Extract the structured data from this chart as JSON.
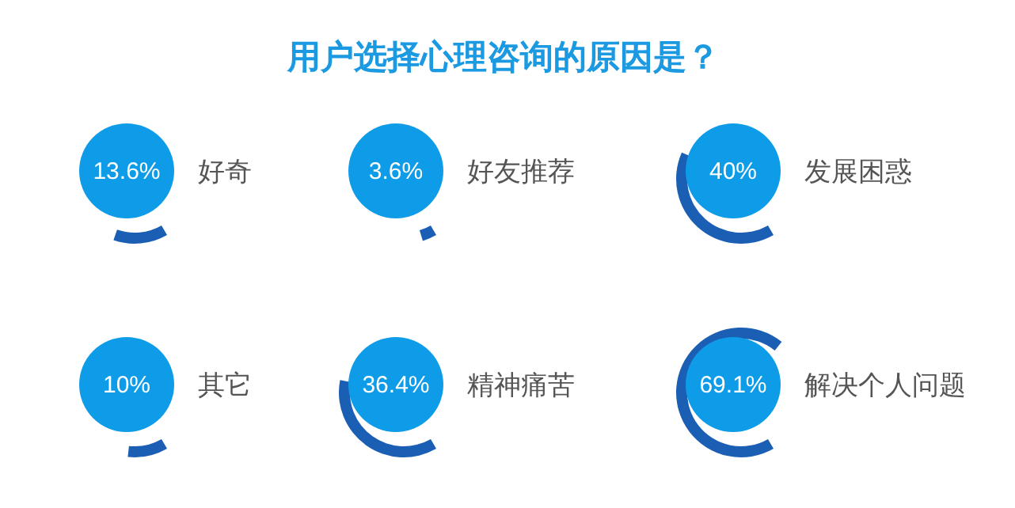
{
  "chart_data": {
    "type": "other",
    "title": "用户选择心理咨询的原因是？",
    "categories": [
      "好奇",
      "好友推荐",
      "发展困惑",
      "其它",
      "精神痛苦",
      "解决个人问题"
    ],
    "values": [
      13.6,
      3.6,
      40,
      10,
      36.4,
      69.1
    ],
    "value_labels": [
      "13.6%",
      "3.6%",
      "40%",
      "10%",
      "36.4%",
      "69.1%"
    ],
    "color": "#0e9be8"
  }
}
